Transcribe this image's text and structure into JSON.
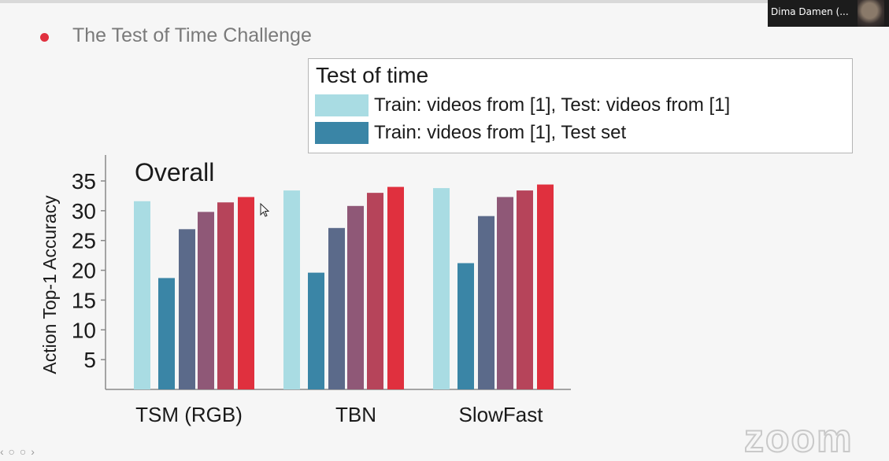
{
  "meeting": {
    "participant_name": "Dima Damen (...",
    "watermark": "zoom"
  },
  "slide": {
    "bullet": "The Test of Time Challenge"
  },
  "legend": {
    "title": "Test of time",
    "entries": [
      {
        "label": "Train: videos from [1], Test: videos from [1]",
        "color": "#a9dce3"
      },
      {
        "label": "Train: videos from [1], Test set",
        "color": "#3a85a6"
      }
    ]
  },
  "chart_data": {
    "type": "bar",
    "title": "Overall",
    "ylabel": "Action Top-1 Accuracy",
    "xlabel": "",
    "ylim": [
      0,
      35
    ],
    "yticks": [
      5,
      10,
      15,
      20,
      25,
      30,
      35
    ],
    "categories": [
      "TSM (RGB)",
      "TBN",
      "SlowFast"
    ],
    "grid": false,
    "legend_position": "top-right",
    "series": [
      {
        "name": "Train: videos from [1], Test: videos from [1]",
        "color": "#a9dce3",
        "values": [
          31.6,
          33.4,
          33.8
        ]
      },
      {
        "name": "Train: videos from [1], Test set",
        "color": "#3a85a6",
        "values": [
          18.7,
          19.6,
          21.2
        ]
      },
      {
        "color": "#5b6a8a",
        "values": [
          26.9,
          27.1,
          29.1
        ]
      },
      {
        "color": "#8f5877",
        "values": [
          29.8,
          30.8,
          32.3
        ]
      },
      {
        "color": "#b6445a",
        "values": [
          31.4,
          33.0,
          33.4
        ]
      },
      {
        "color": "#e0303e",
        "values": [
          32.3,
          34.0,
          34.4
        ]
      }
    ]
  }
}
